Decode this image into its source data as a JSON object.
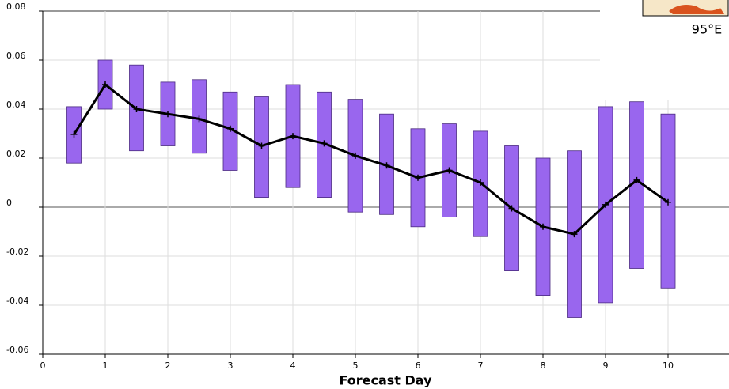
{
  "chart_data": {
    "type": "range-bar",
    "x_label": "Forecast Day",
    "annotation": "95°E",
    "x": [
      0.5,
      1,
      1.5,
      2,
      2.5,
      3,
      3.5,
      4,
      4.5,
      5,
      5.5,
      6,
      6.5,
      7,
      7.5,
      8,
      8.5,
      9,
      9.5,
      10
    ],
    "high": [
      0.041,
      0.06,
      0.058,
      0.051,
      0.052,
      0.047,
      0.045,
      0.05,
      0.047,
      0.044,
      0.038,
      0.032,
      0.034,
      0.031,
      0.025,
      0.02,
      0.023,
      0.041,
      0.043,
      0.038
    ],
    "low": [
      0.018,
      0.04,
      0.023,
      0.025,
      0.022,
      0.015,
      0.004,
      0.008,
      0.004,
      -0.002,
      -0.003,
      -0.008,
      -0.004,
      -0.012,
      -0.026,
      -0.036,
      -0.045,
      -0.039,
      -0.025,
      -0.033
    ],
    "values": [
      0.0297,
      0.05,
      0.04,
      0.038,
      0.036,
      0.032,
      0.025,
      0.029,
      0.026,
      0.021,
      0.017,
      0.012,
      0.015,
      0.01,
      -0.0005,
      -0.008,
      -0.011,
      0.001,
      0.011,
      0.002
    ],
    "bar_color": "#9966ee",
    "line_color": "#000000",
    "xlim": [
      0,
      11
    ],
    "xticks": [
      0,
      1,
      2,
      3,
      4,
      5,
      6,
      7,
      8,
      9,
      10
    ],
    "ylim": [
      -0.06,
      0.08
    ],
    "yticks": [
      -0.06,
      -0.04,
      -0.02,
      0,
      0.02,
      0.04,
      0.06,
      0.08
    ],
    "grid": true
  }
}
